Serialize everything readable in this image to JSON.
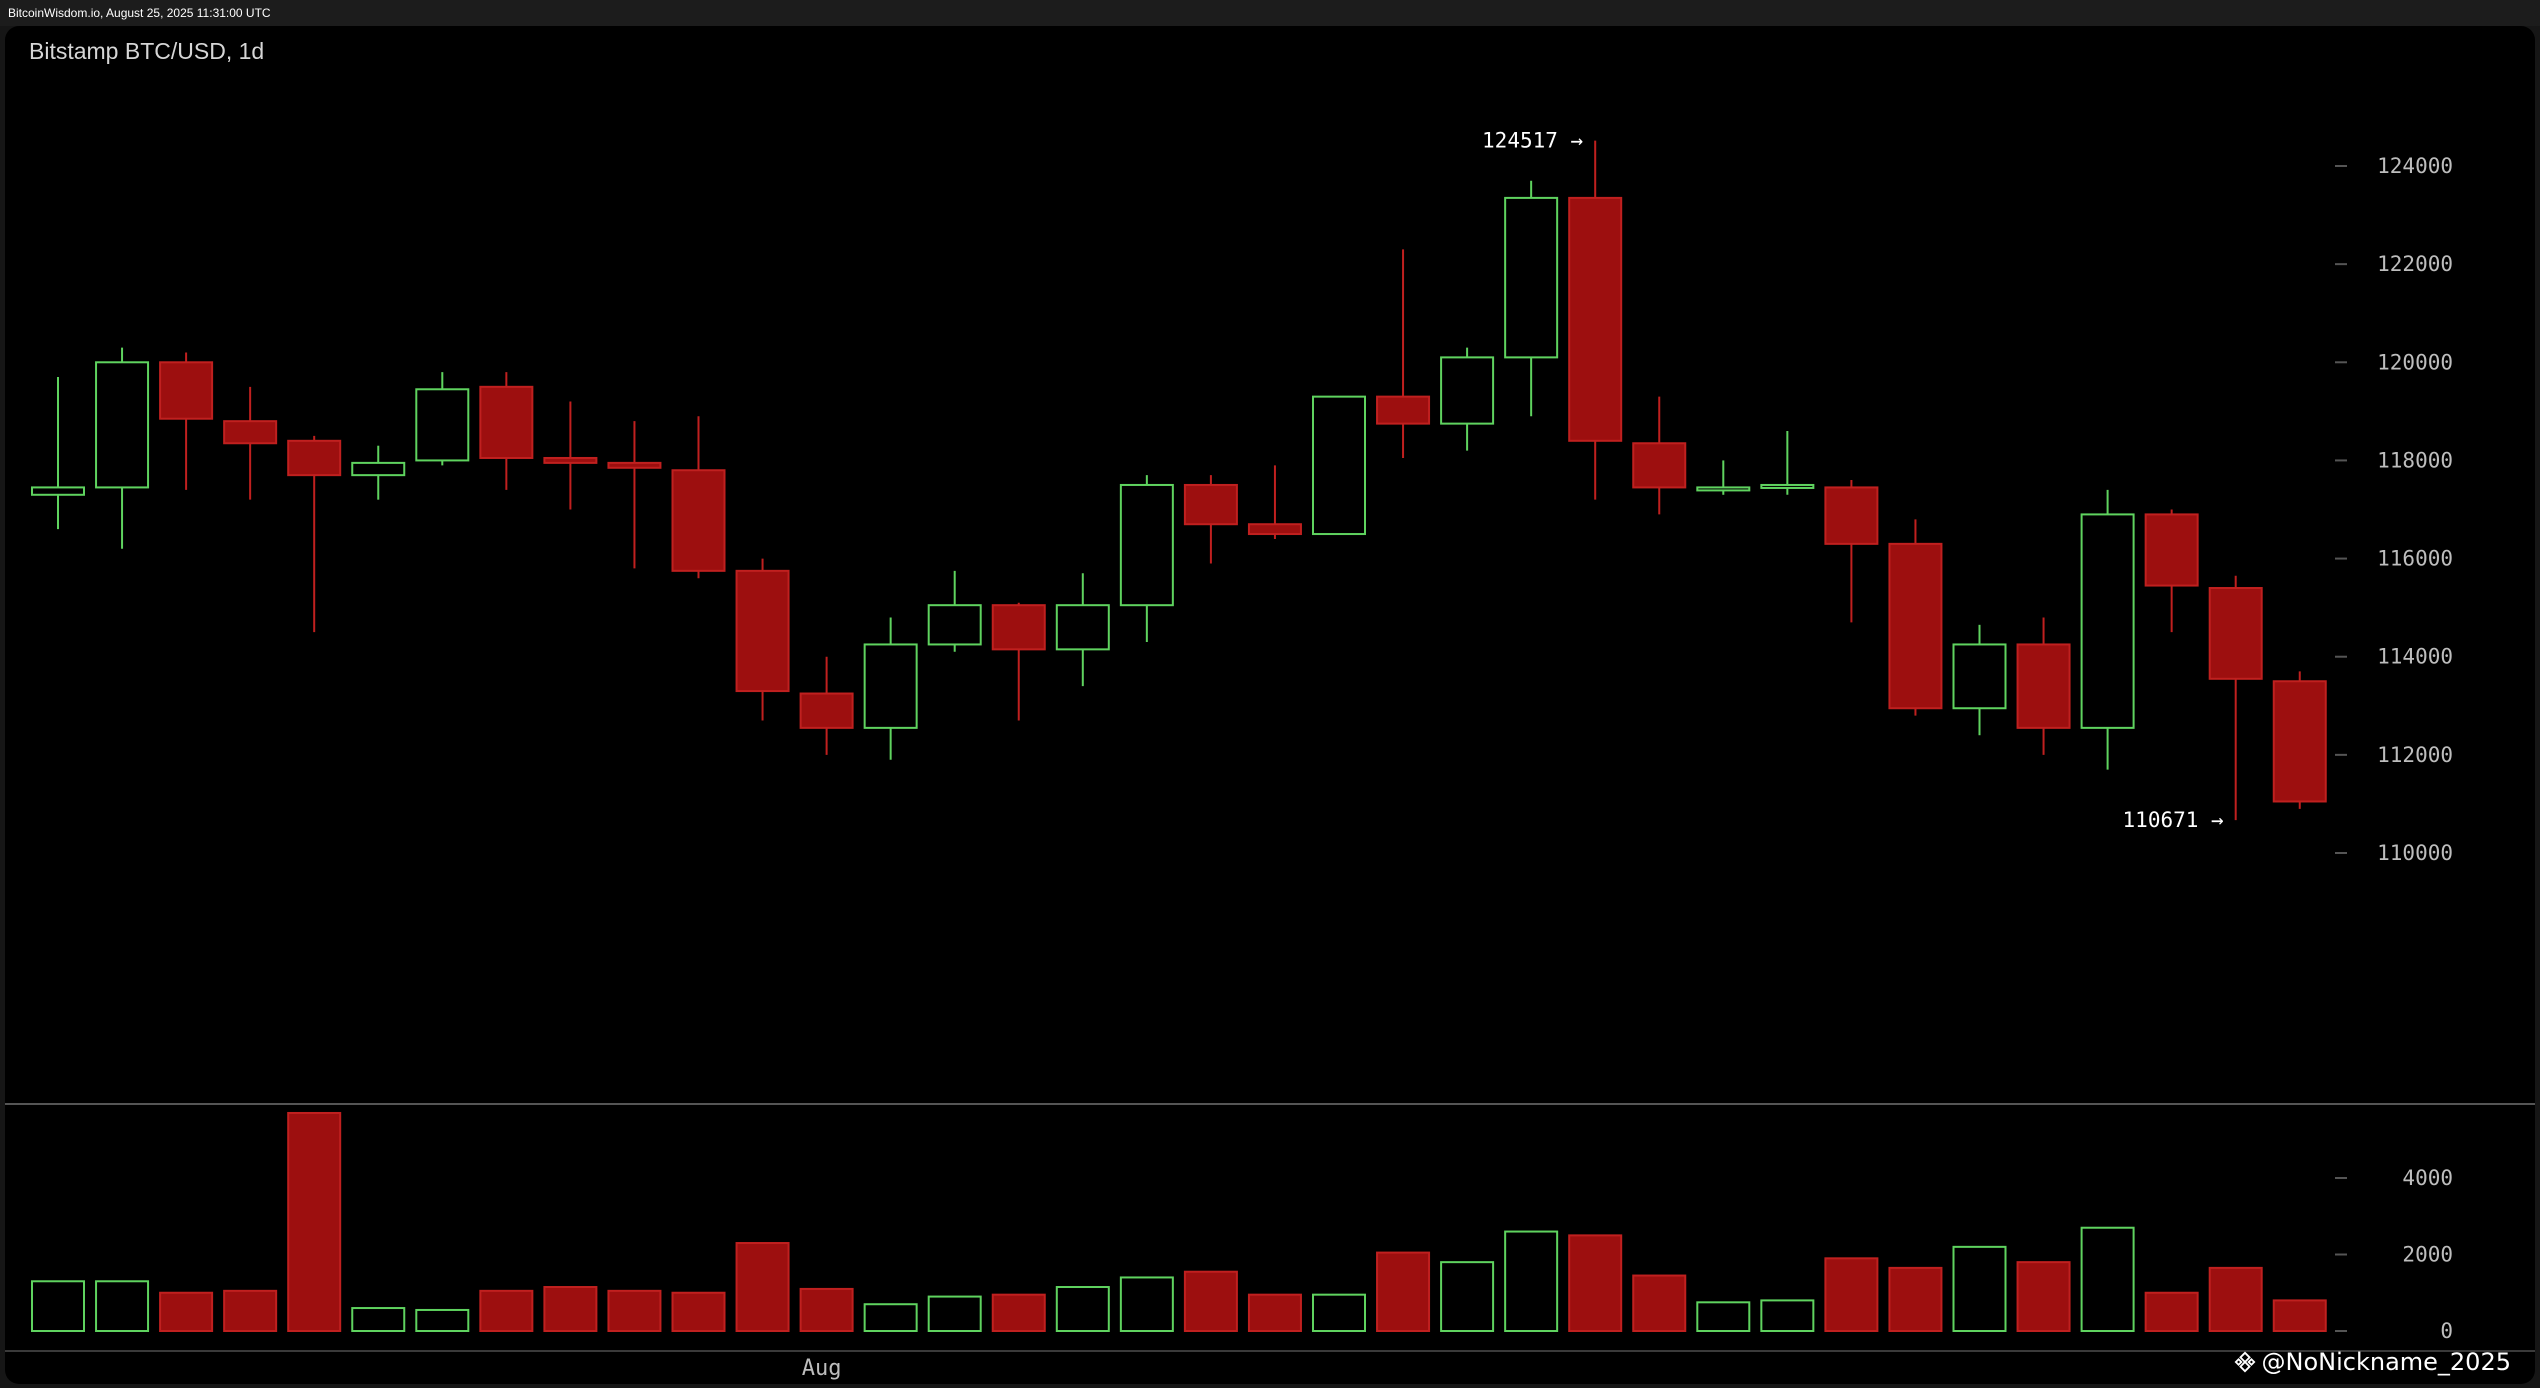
{
  "source_stamp": "BitcoinWisdom.io, August 25, 2025 11:31:00 UTC",
  "watermark": "@NoNickname_2025",
  "colors": {
    "up": "#5fd35f",
    "down": "#9d0f0f",
    "down_border": "#c0201f",
    "background": "#000000",
    "axis_text": "#bdbdbd"
  },
  "chart_data": {
    "type": "candlestick",
    "title": "Bitstamp BTC/USD, 1d",
    "price_axis": {
      "ticks": [
        110000,
        112000,
        114000,
        116000,
        118000,
        120000,
        122000,
        124000
      ]
    },
    "volume_axis": {
      "ticks": [
        0,
        2000,
        4000
      ]
    },
    "x_labels": [
      {
        "label": "Aug",
        "index": 12
      }
    ],
    "annotations": [
      {
        "text": "124517 →",
        "value": 124517,
        "index": 24
      },
      {
        "text": "110671 →",
        "value": 110671,
        "index": 34
      }
    ],
    "candles": [
      {
        "open": 117300,
        "high": 119700,
        "low": 116600,
        "close": 117450,
        "volume": 1300
      },
      {
        "open": 117450,
        "high": 120300,
        "low": 116200,
        "close": 120000,
        "volume": 1300
      },
      {
        "open": 120000,
        "high": 120200,
        "low": 117400,
        "close": 118850,
        "volume": 1000
      },
      {
        "open": 118800,
        "high": 119500,
        "low": 117200,
        "close": 118350,
        "volume": 1050
      },
      {
        "open": 118400,
        "high": 118500,
        "low": 114500,
        "close": 117700,
        "volume": 5700
      },
      {
        "open": 117700,
        "high": 118300,
        "low": 117200,
        "close": 117950,
        "volume": 600
      },
      {
        "open": 118000,
        "high": 119800,
        "low": 117900,
        "close": 119450,
        "volume": 550
      },
      {
        "open": 119500,
        "high": 119800,
        "low": 117400,
        "close": 118050,
        "volume": 1050
      },
      {
        "open": 118050,
        "high": 119200,
        "low": 117000,
        "close": 117950,
        "volume": 1150
      },
      {
        "open": 117950,
        "high": 118800,
        "low": 115800,
        "close": 117850,
        "volume": 1050
      },
      {
        "open": 117800,
        "high": 118900,
        "low": 115600,
        "close": 115750,
        "volume": 1000
      },
      {
        "open": 115750,
        "high": 116000,
        "low": 112700,
        "close": 113300,
        "volume": 2300
      },
      {
        "open": 113250,
        "high": 114000,
        "low": 112000,
        "close": 112550,
        "volume": 1100
      },
      {
        "open": 112550,
        "high": 114800,
        "low": 111900,
        "close": 114250,
        "volume": 700
      },
      {
        "open": 114250,
        "high": 115750,
        "low": 114100,
        "close": 115050,
        "volume": 900
      },
      {
        "open": 115050,
        "high": 115100,
        "low": 112700,
        "close": 114150,
        "volume": 950
      },
      {
        "open": 114150,
        "high": 115700,
        "low": 113400,
        "close": 115050,
        "volume": 1150
      },
      {
        "open": 115050,
        "high": 117700,
        "low": 114300,
        "close": 117500,
        "volume": 1400
      },
      {
        "open": 117500,
        "high": 117700,
        "low": 115900,
        "close": 116700,
        "volume": 1550
      },
      {
        "open": 116700,
        "high": 117900,
        "low": 116400,
        "close": 116500,
        "volume": 950
      },
      {
        "open": 116500,
        "high": 119300,
        "low": 116500,
        "close": 119300,
        "volume": 950
      },
      {
        "open": 119300,
        "high": 122300,
        "low": 118050,
        "close": 118750,
        "volume": 2050
      },
      {
        "open": 118750,
        "high": 120300,
        "low": 118200,
        "close": 120100,
        "volume": 1800
      },
      {
        "open": 120100,
        "high": 123700,
        "low": 118900,
        "close": 123350,
        "volume": 2600
      },
      {
        "open": 123350,
        "high": 124517,
        "low": 117200,
        "close": 118400,
        "volume": 2500
      },
      {
        "open": 118350,
        "high": 119300,
        "low": 116900,
        "close": 117450,
        "volume": 1450
      },
      {
        "open": 117450,
        "high": 118000,
        "low": 117300,
        "close": 117450,
        "volume": 750
      },
      {
        "open": 117450,
        "high": 118600,
        "low": 117300,
        "close": 117500,
        "volume": 800
      },
      {
        "open": 117450,
        "high": 117600,
        "low": 114700,
        "close": 116300,
        "volume": 1900
      },
      {
        "open": 116300,
        "high": 116800,
        "low": 112800,
        "close": 112950,
        "volume": 1650
      },
      {
        "open": 112950,
        "high": 114650,
        "low": 112400,
        "close": 114250,
        "volume": 2200
      },
      {
        "open": 114250,
        "high": 114800,
        "low": 112000,
        "close": 112550,
        "volume": 1800
      },
      {
        "open": 112550,
        "high": 117400,
        "low": 111700,
        "close": 116900,
        "volume": 2700
      },
      {
        "open": 116900,
        "high": 117000,
        "low": 114500,
        "close": 115450,
        "volume": 1000
      },
      {
        "open": 115400,
        "high": 115650,
        "low": 110671,
        "close": 113550,
        "volume": 1650
      },
      {
        "open": 113500,
        "high": 113700,
        "low": 110900,
        "close": 111050,
        "volume": 800
      }
    ]
  }
}
